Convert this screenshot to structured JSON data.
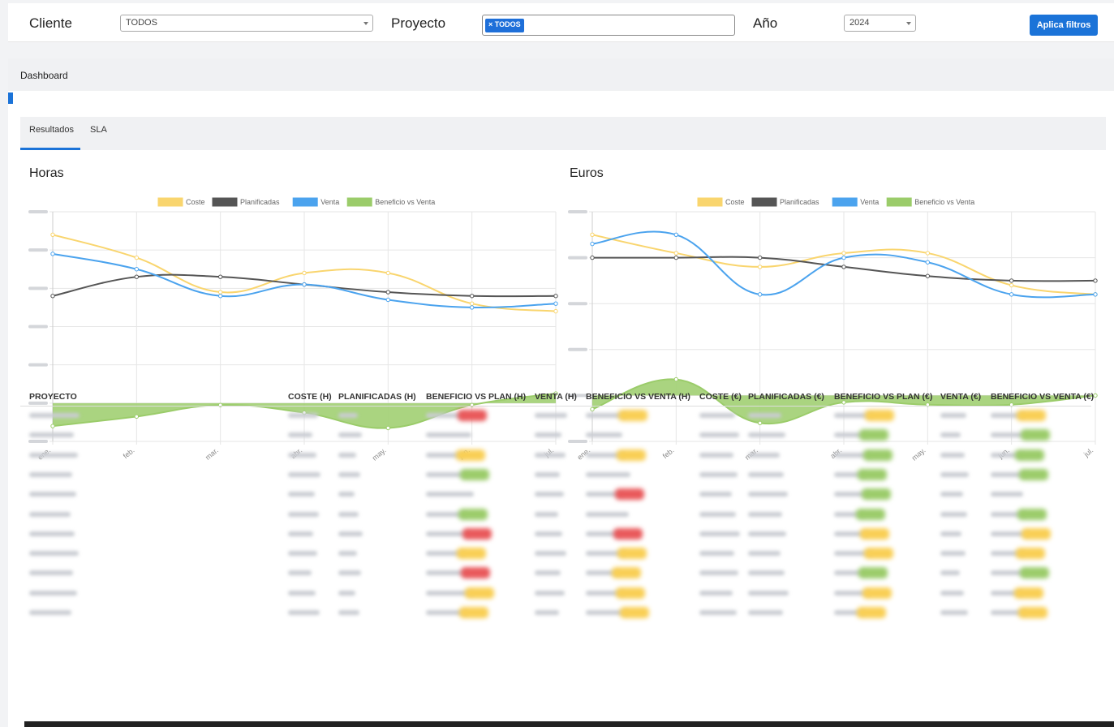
{
  "filters": {
    "client_label": "Cliente",
    "client_value": "TODOS",
    "project_label": "Proyecto",
    "project_chip": "× TODOS",
    "year_label": "Año",
    "year_value": "2024",
    "apply_label": "Aplica filtros"
  },
  "breadcrumb": "Dashboard",
  "tabs": [
    "Resultados",
    "SLA"
  ],
  "colors": {
    "coste": "#f9d56e",
    "planificadas": "#555555",
    "venta": "#4ba3ee",
    "beneficio": "#9bcc6a",
    "accent": "#1b73d8"
  },
  "chart_data": [
    {
      "type": "line",
      "title": "Horas",
      "categories": [
        "ene.",
        "feb.",
        "mar.",
        "abr.",
        "may.",
        "jun.",
        "jul."
      ],
      "legend_position": "top",
      "grid": true,
      "ylim": [
        -1,
        5
      ],
      "series": [
        {
          "name": "Coste",
          "values": [
            4.4,
            3.8,
            2.9,
            3.4,
            3.4,
            2.6,
            2.4
          ]
        },
        {
          "name": "Planificadas",
          "values": [
            2.8,
            3.3,
            3.3,
            3.1,
            2.9,
            2.8,
            2.8
          ]
        },
        {
          "name": "Venta",
          "values": [
            3.9,
            3.5,
            2.8,
            3.1,
            2.7,
            2.5,
            2.6
          ]
        },
        {
          "name": "Beneficio vs Venta",
          "values": [
            -0.6,
            -0.35,
            -0.05,
            -0.25,
            -0.65,
            -0.05,
            0.25
          ]
        }
      ]
    },
    {
      "type": "line",
      "title": "Euros",
      "categories": [
        "ene.",
        "feb.",
        "mar.",
        "abr.",
        "may.",
        "jun.",
        "jul."
      ],
      "legend_position": "top",
      "grid": true,
      "ylim": [
        -1,
        4
      ],
      "series": [
        {
          "name": "Coste",
          "values": [
            3.5,
            3.1,
            2.8,
            3.1,
            3.1,
            2.4,
            2.2
          ]
        },
        {
          "name": "Planificadas",
          "values": [
            3.0,
            3.0,
            3.0,
            2.8,
            2.6,
            2.5,
            2.5
          ]
        },
        {
          "name": "Venta",
          "values": [
            3.3,
            3.5,
            2.2,
            3.0,
            2.9,
            2.2,
            2.2
          ]
        },
        {
          "name": "Beneficio vs Venta",
          "values": [
            -0.3,
            0.35,
            -0.6,
            -0.15,
            -0.2,
            -0.2,
            0.0
          ]
        }
      ]
    }
  ],
  "table": {
    "headers": [
      "PROYECTO",
      "COSTE (H)",
      "PLANIFICADAS (H)",
      "BENEFICIO VS PLAN (H)",
      "VENTA (H)",
      "BENEFICIO VS VENTA (H)",
      "COSTE (€)",
      "PLANIFICADAS (€)",
      "BENEFICIO VS PLAN (€)",
      "VENTA (€)",
      "BENEFICIO VS VENTA (€)"
    ],
    "row_status": [
      [
        "red",
        "yellow",
        "yellow",
        "yellow"
      ],
      [
        "none",
        "none",
        "green",
        "green"
      ],
      [
        "yellow",
        "yellow",
        "green",
        "green"
      ],
      [
        "green",
        "none",
        "green",
        "green"
      ],
      [
        "none",
        "red",
        "green",
        "none"
      ],
      [
        "green",
        "none",
        "green",
        "green"
      ],
      [
        "red",
        "red",
        "yellow",
        "yellow"
      ],
      [
        "yellow",
        "yellow",
        "yellow",
        "yellow"
      ],
      [
        "red",
        "yellow",
        "green",
        "green"
      ],
      [
        "yellow",
        "yellow",
        "yellow",
        "yellow"
      ],
      [
        "yellow",
        "yellow",
        "yellow",
        "yellow"
      ]
    ]
  }
}
